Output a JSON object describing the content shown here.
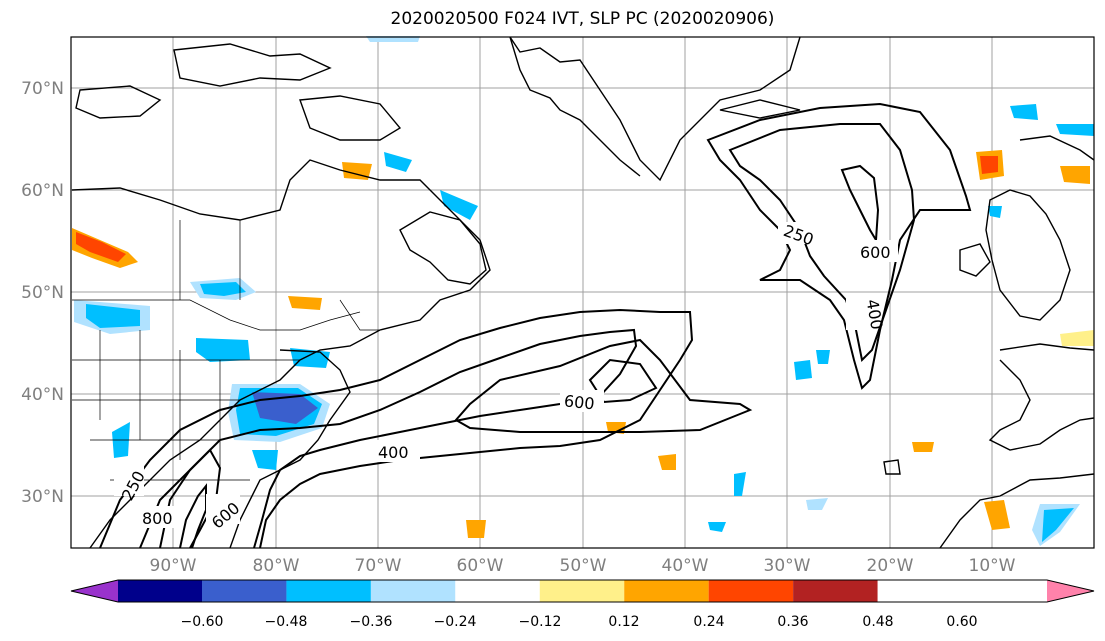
{
  "title": "2020020500 F024 IVT, SLP PC (2020020906)",
  "map": {
    "lon_range": [
      -100,
      0
    ],
    "lat_range": [
      25,
      75
    ],
    "lat_ticks": [
      "30°N",
      "40°N",
      "50°N",
      "60°N",
      "70°N"
    ],
    "lon_ticks": [
      "90°W",
      "80°W",
      "70°W",
      "60°W",
      "50°W",
      "40°W",
      "30°W",
      "20°W",
      "10°W"
    ],
    "contour_labels": [
      "250",
      "600",
      "400",
      "600",
      "400",
      "250",
      "800",
      "600"
    ]
  },
  "colorbar": {
    "ticks": [
      "−0.60",
      "−0.48",
      "−0.36",
      "−0.24",
      "−0.12",
      "0.12",
      "0.24",
      "0.36",
      "0.48",
      "0.60"
    ],
    "colors": [
      "#9932cc",
      "#00008b",
      "#3a5fcd",
      "#00bfff",
      "#b0e2ff",
      "#ffffff",
      "#fff08a",
      "#ffa500",
      "#ff4500",
      "#b22222",
      "#ff82ab"
    ]
  }
}
